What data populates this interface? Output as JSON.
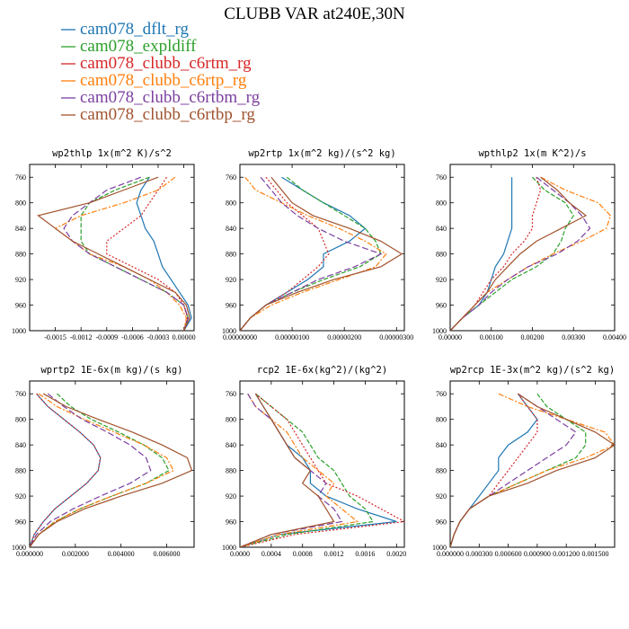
{
  "figure": {
    "title": "CLUBB VAR at240E,30N"
  },
  "series_styles": [
    {
      "name": "cam078_dflt_rg",
      "color": "#1f77b4",
      "dash": ""
    },
    {
      "name": "cam078_expldiff",
      "color": "#2ca02c",
      "dash": "5,2"
    },
    {
      "name": "cam078_clubb_c6rtm_rg",
      "color": "#d62728",
      "dash": "2,2"
    },
    {
      "name": "cam078_clubb_c6rtp_rg",
      "color": "#ff7f0e",
      "dash": "6,2,2,2"
    },
    {
      "name": "cam078_clubb_c6rtbm_rg",
      "color": "#7b3fa0",
      "dash": "7,3"
    },
    {
      "name": "cam078_clubb_c6rtbp_rg",
      "color": "#a0522d",
      "dash": ""
    }
  ],
  "chart_data": [
    {
      "type": "line",
      "title": "wp2thlp  1x(m^2 K)/s^2",
      "xlim": [
        -0.0018,
        0.00012
      ],
      "ylim": [
        740,
        1000
      ],
      "yticks": [
        760,
        800,
        840,
        880,
        920,
        960,
        1000
      ],
      "xticks": [
        -0.0015,
        -0.0012,
        -0.0009,
        -0.0006,
        -0.0003,
        0.0
      ],
      "xticklabels": [
        "-0.0015",
        "-0.0012",
        "-0.0009",
        "-0.0006",
        "-0.0003",
        "0.00000"
      ],
      "y": [
        760,
        780,
        800,
        820,
        840,
        860,
        880,
        900,
        920,
        940,
        960,
        980,
        1000
      ],
      "series": [
        {
          "values": [
            -0.0004,
            -0.0005,
            -0.00055,
            -0.0005,
            -0.00045,
            -0.00035,
            -0.0003,
            -0.00025,
            -0.00015,
            -5e-05,
            5e-05,
            9e-05,
            0.0
          ]
        },
        {
          "values": [
            -0.0004,
            -0.0008,
            -0.0011,
            -0.0012,
            -0.0012,
            -0.0012,
            -0.0011,
            -0.0008,
            -0.0005,
            -0.0002,
            0.0,
            5e-05,
            0.0
          ]
        },
        {
          "values": [
            -0.0002,
            -0.0003,
            -0.0004,
            -0.0005,
            -0.0007,
            -0.0009,
            -0.0009,
            -0.0006,
            -0.0003,
            -0.0001,
            0.0,
            4e-05,
            0.0
          ]
        },
        {
          "values": [
            -0.0001,
            -0.0003,
            -0.0007,
            -0.0012,
            -0.0015,
            -0.0013,
            -0.0011,
            -0.0007,
            -0.0004,
            -0.0002,
            -5e-05,
            3e-05,
            0.0
          ]
        },
        {
          "values": [
            -0.0005,
            -0.0009,
            -0.0011,
            -0.0013,
            -0.0014,
            -0.0013,
            -0.0011,
            -0.0008,
            -0.0005,
            -0.0002,
            0.0,
            5e-05,
            0.0
          ]
        },
        {
          "values": [
            -0.0003,
            -0.0007,
            -0.0011,
            -0.0017,
            -0.0015,
            -0.0013,
            -0.001,
            -0.0007,
            -0.0004,
            -0.0001,
            3e-05,
            7e-05,
            0.0
          ]
        }
      ]
    },
    {
      "type": "line",
      "title": "wp2rtp  1x(m^2 kg)/(s^2 kg)",
      "xlim": [
        0,
        3.15e-06
      ],
      "ylim": [
        740,
        1000
      ],
      "yticks": [
        760,
        800,
        840,
        880,
        920,
        960,
        1000
      ],
      "xticks": [
        0,
        1e-06,
        2e-06,
        3e-06
      ],
      "xticklabels": [
        "0.00000000",
        "0.00000100",
        "0.00000200",
        "0.00000300"
      ],
      "y": [
        760,
        780,
        800,
        820,
        840,
        860,
        880,
        900,
        920,
        940,
        960,
        980,
        1000
      ],
      "series": [
        {
          "values": [
            8e-07,
            1.2e-06,
            1.6e-06,
            2.1e-06,
            2.4e-06,
            2.1e-06,
            1.6e-06,
            1.6e-06,
            1.3e-06,
            9e-07,
            5e-07,
            2e-07,
            0.0
          ]
        },
        {
          "values": [
            9e-07,
            1.2e-06,
            1.6e-06,
            2e-06,
            2.4e-06,
            2.6e-06,
            2.7e-06,
            2.3e-06,
            1.6e-06,
            1e-06,
            5e-07,
            2e-07,
            0.0
          ]
        },
        {
          "values": [
            5e-07,
            7e-07,
            9e-07,
            1.2e-06,
            1.5e-06,
            1.6e-06,
            1.7e-06,
            1.5e-06,
            1.2e-06,
            9e-07,
            5e-07,
            2e-07,
            0.0
          ]
        },
        {
          "values": [
            1e-07,
            3e-07,
            8e-07,
            1.3e-06,
            1.9e-06,
            2.4e-06,
            2.8e-06,
            2.6e-06,
            1.9e-06,
            1.2e-06,
            6e-07,
            2e-07,
            0.0
          ]
        },
        {
          "values": [
            4e-07,
            6e-07,
            8e-07,
            1.1e-06,
            1.5e-06,
            2e-06,
            2.7e-06,
            2.2e-06,
            1.5e-06,
            1e-06,
            5e-07,
            2e-07,
            0.0
          ]
        },
        {
          "values": [
            6e-07,
            8e-07,
            1e-06,
            1.4e-06,
            2.1e-06,
            2.7e-06,
            3.1e-06,
            2.7e-06,
            1.8e-06,
            1.1e-06,
            5e-07,
            2e-07,
            0.0
          ]
        }
      ]
    },
    {
      "type": "line",
      "title": "wpthlp2  1x(m K^2)/s",
      "xlim": [
        0,
        0.004
      ],
      "ylim": [
        740,
        1000
      ],
      "yticks": [
        760,
        800,
        840,
        880,
        920,
        960,
        1000
      ],
      "xticks": [
        0,
        0.001,
        0.002,
        0.003,
        0.004
      ],
      "xticklabels": [
        "0.00000",
        "0.00100",
        "0.00200",
        "0.00300",
        "0.00400"
      ],
      "y": [
        760,
        780,
        800,
        820,
        840,
        860,
        880,
        900,
        920,
        940,
        960,
        980,
        1000
      ],
      "series": [
        {
          "values": [
            0.0015,
            0.0015,
            0.0015,
            0.0015,
            0.0015,
            0.0014,
            0.0013,
            0.0011,
            0.001,
            0.0009,
            0.0007,
            0.0003,
            0.0
          ]
        },
        {
          "values": [
            0.002,
            0.0023,
            0.0028,
            0.003,
            0.0028,
            0.0027,
            0.0025,
            0.0021,
            0.0015,
            0.0011,
            0.0007,
            0.0003,
            0.0
          ]
        },
        {
          "values": [
            0.0021,
            0.0022,
            0.0021,
            0.002,
            0.002,
            0.0018,
            0.0015,
            0.0013,
            0.001,
            0.0008,
            0.0006,
            0.0003,
            0.0
          ]
        },
        {
          "values": [
            0.0022,
            0.0028,
            0.0036,
            0.0039,
            0.0038,
            0.0032,
            0.0025,
            0.0019,
            0.0014,
            0.0009,
            0.0006,
            0.0003,
            0.0
          ]
        },
        {
          "values": [
            0.0021,
            0.0025,
            0.0029,
            0.0032,
            0.0034,
            0.0031,
            0.0026,
            0.0019,
            0.0014,
            0.001,
            0.0007,
            0.0003,
            0.0
          ]
        },
        {
          "values": [
            0.0022,
            0.0026,
            0.0029,
            0.0033,
            0.0027,
            0.0021,
            0.0017,
            0.0014,
            0.0011,
            0.0009,
            0.0006,
            0.0003,
            0.0
          ]
        }
      ]
    },
    {
      "type": "line",
      "title": "wprtp2  1E-6x(m kg)/(s kg)",
      "xlim": [
        0,
        0.0072
      ],
      "ylim": [
        740,
        1000
      ],
      "yticks": [
        760,
        800,
        840,
        880,
        920,
        960,
        1000
      ],
      "xticks": [
        0,
        0.002,
        0.004,
        0.006
      ],
      "xticklabels": [
        "0.000000",
        "0.002000",
        "0.004000",
        "0.006000"
      ],
      "y": [
        760,
        780,
        800,
        820,
        840,
        860,
        880,
        900,
        920,
        940,
        960,
        980,
        1000
      ],
      "series": [
        {
          "values": [
            0.0003,
            0.0008,
            0.0015,
            0.0022,
            0.0028,
            0.0031,
            0.003,
            0.0025,
            0.0018,
            0.0011,
            0.0006,
            0.0002,
            0.0
          ]
        },
        {
          "values": [
            0.0012,
            0.0018,
            0.0027,
            0.0039,
            0.005,
            0.0058,
            0.0061,
            0.0051,
            0.0036,
            0.0022,
            0.0011,
            0.0004,
            0.0
          ]
        },
        {
          "values": [
            0.0003,
            0.0008,
            0.0015,
            0.0022,
            0.0028,
            0.0031,
            0.003,
            0.0025,
            0.0018,
            0.0011,
            0.0006,
            0.0002,
            0.0
          ]
        },
        {
          "values": [
            0.0004,
            0.0012,
            0.0024,
            0.0037,
            0.005,
            0.006,
            0.0063,
            0.0051,
            0.0036,
            0.0022,
            0.0011,
            0.0004,
            0.0
          ]
        },
        {
          "values": [
            0.0008,
            0.0015,
            0.0023,
            0.0034,
            0.0044,
            0.0051,
            0.0053,
            0.0044,
            0.0031,
            0.0019,
            0.0009,
            0.0003,
            0.0
          ]
        },
        {
          "values": [
            0.0006,
            0.0016,
            0.003,
            0.0045,
            0.0058,
            0.0069,
            0.0071,
            0.0058,
            0.004,
            0.0024,
            0.0012,
            0.0004,
            0.0
          ]
        }
      ]
    },
    {
      "type": "line",
      "title": "rcp2  1E-6x(kg^2)/(kg^2)",
      "xlim": [
        0,
        0.0021
      ],
      "ylim": [
        740,
        1000
      ],
      "yticks": [
        760,
        800,
        840,
        880,
        920,
        960,
        1000
      ],
      "xticks": [
        0,
        0.0004,
        0.0008,
        0.0012,
        0.0016,
        0.002
      ],
      "xticklabels": [
        "0.0000",
        "0.0004",
        "0.0008",
        "0.0012",
        "0.0016",
        "0.0020"
      ],
      "y": [
        760,
        780,
        800,
        820,
        840,
        860,
        880,
        900,
        920,
        940,
        960,
        980,
        1000
      ],
      "series": [
        {
          "values": [
            0.0002,
            0.0003,
            0.0004,
            0.0005,
            0.0006,
            0.0008,
            0.0009,
            0.0009,
            0.0011,
            0.0015,
            0.002,
            0.0005,
            0.0
          ]
        },
        {
          "values": [
            0.0002,
            0.0004,
            0.0006,
            0.0008,
            0.0009,
            0.001,
            0.0012,
            0.0013,
            0.0014,
            0.0016,
            0.0017,
            0.0006,
            0.0
          ]
        },
        {
          "values": [
            0.0002,
            0.0004,
            0.0006,
            0.0007,
            0.0008,
            0.0009,
            0.001,
            0.0011,
            0.0015,
            0.0018,
            0.0021,
            0.0007,
            0.0
          ]
        },
        {
          "values": [
            0.0001,
            0.0002,
            0.0004,
            0.0006,
            0.0007,
            0.0008,
            0.001,
            0.0012,
            0.0011,
            0.0013,
            0.0015,
            0.0005,
            0.0
          ]
        },
        {
          "values": [
            0.0001,
            0.0002,
            0.0004,
            0.0005,
            0.0006,
            0.0007,
            0.0009,
            0.0011,
            0.001,
            0.0012,
            0.0013,
            0.0004,
            0.0
          ]
        },
        {
          "values": [
            0.0002,
            0.0003,
            0.0004,
            0.0005,
            0.0006,
            0.0007,
            0.0009,
            0.0008,
            0.001,
            0.0011,
            0.0012,
            0.0004,
            0.0
          ]
        }
      ]
    },
    {
      "type": "line",
      "title": "wp2rcp  1E-3x(m^2 kg)/(s^2 kg)",
      "xlim": [
        0,
        0.0017
      ],
      "ylim": [
        740,
        1000
      ],
      "yticks": [
        760,
        800,
        840,
        880,
        920,
        960,
        1000
      ],
      "xticks": [
        0,
        0.0003,
        0.0006,
        0.0009,
        0.0012,
        0.0015
      ],
      "xticklabels": [
        "0.000000",
        "0.000300",
        "0.000600",
        "0.000900",
        "0.001200",
        "0.001500"
      ],
      "y": [
        760,
        780,
        800,
        820,
        840,
        860,
        880,
        900,
        920,
        940,
        960,
        980,
        1000
      ],
      "series": [
        {
          "values": [
            0.0007,
            0.0008,
            0.0009,
            0.0008,
            0.0006,
            0.0005,
            0.0005,
            0.0004,
            0.0003,
            0.0002,
            0.0001,
            4e-05,
            0.0
          ]
        },
        {
          "values": [
            0.0009,
            0.001,
            0.0012,
            0.0014,
            0.0014,
            0.0013,
            0.001,
            0.0007,
            0.0004,
            0.0002,
            0.0001,
            4e-05,
            0.0
          ]
        },
        {
          "values": [
            0.0007,
            0.0008,
            0.0009,
            0.0009,
            0.0008,
            0.0007,
            0.0006,
            0.0005,
            0.0004,
            0.0002,
            0.0001,
            4e-05,
            0.0
          ]
        },
        {
          "values": [
            0.0005,
            0.0008,
            0.0012,
            0.0016,
            0.0017,
            0.0014,
            0.001,
            0.0007,
            0.0004,
            0.0002,
            0.0001,
            4e-05,
            0.0
          ]
        },
        {
          "values": [
            0.0007,
            0.0009,
            0.0011,
            0.0013,
            0.0012,
            0.001,
            0.0008,
            0.0006,
            0.0004,
            0.0002,
            0.0001,
            4e-05,
            0.0
          ]
        },
        {
          "values": [
            0.0007,
            0.0009,
            0.0012,
            0.0015,
            0.0017,
            0.0015,
            0.0011,
            0.0008,
            0.0004,
            0.0002,
            0.0001,
            4e-05,
            0.0
          ]
        }
      ]
    }
  ]
}
